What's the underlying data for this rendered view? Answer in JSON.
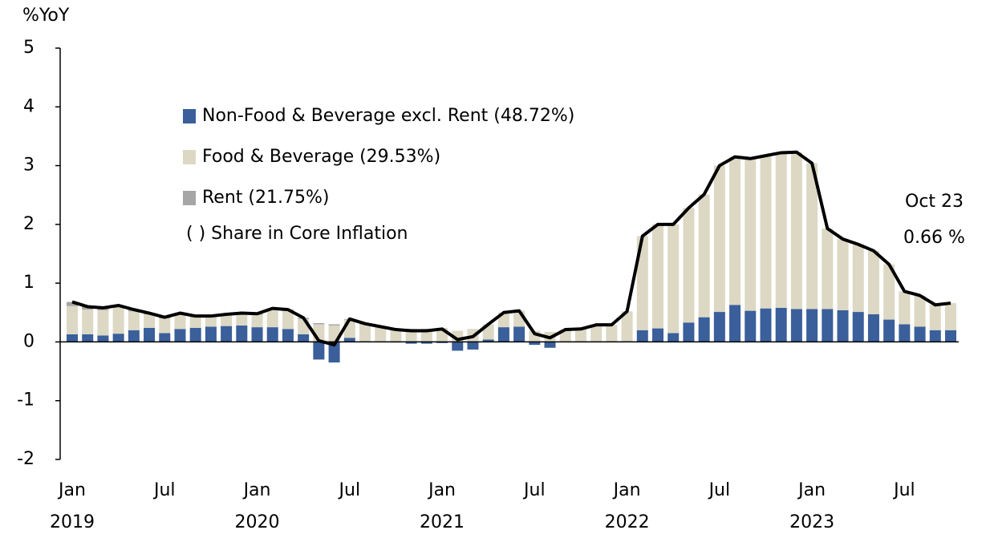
{
  "chart_data": {
    "type": "bar",
    "y_label": "%YoY",
    "categories": [
      "Jan 2019",
      null,
      null,
      null,
      null,
      null,
      "Jul",
      null,
      null,
      null,
      null,
      null,
      "Jan 2020",
      null,
      null,
      null,
      null,
      null,
      "Jul",
      null,
      null,
      null,
      null,
      null,
      "Jan 2021",
      null,
      null,
      null,
      null,
      null,
      "Jul",
      null,
      null,
      null,
      null,
      null,
      "Jan 2022",
      null,
      null,
      null,
      null,
      null,
      "Jul",
      null,
      null,
      null,
      null,
      null,
      "Jan 2023",
      null,
      null,
      null,
      null,
      null,
      "Jul",
      null,
      null,
      null
    ],
    "series": [
      {
        "name": "Non-Food & Beverage excl. Rent (48.72%)",
        "color": "#3a5f9a",
        "values": [
          0.13,
          0.13,
          0.11,
          0.14,
          0.2,
          0.24,
          0.15,
          0.22,
          0.24,
          0.26,
          0.27,
          0.28,
          0.25,
          0.25,
          0.22,
          0.13,
          -0.3,
          -0.35,
          0.07,
          0.01,
          0,
          -0.01,
          -0.03,
          -0.03,
          -0.02,
          -0.15,
          -0.13,
          0.04,
          0.25,
          0.26,
          -0.05,
          -0.1,
          0,
          0,
          0,
          0.01,
          0.01,
          0.2,
          0.23,
          0.15,
          0.33,
          0.42,
          0.51,
          0.63,
          0.53,
          0.57,
          0.58,
          0.56,
          0.56,
          0.56,
          0.54,
          0.51,
          0.47,
          0.38,
          0.3,
          0.26,
          0.2,
          0.2
        ]
      },
      {
        "name": "Food & Beverage (29.53%)",
        "color": "#dcd8c4",
        "values": [
          0.48,
          0.42,
          0.43,
          0.45,
          0.32,
          0.23,
          0.25,
          0.25,
          0.18,
          0.16,
          0.18,
          0.19,
          0.21,
          0.3,
          0.31,
          0.26,
          0.3,
          0.28,
          0.31,
          0.29,
          0.25,
          0.21,
          0.21,
          0.21,
          0.24,
          0.19,
          0.22,
          0.26,
          0.25,
          0.27,
          0.19,
          0.17,
          0.21,
          0.22,
          0.29,
          0.28,
          0.51,
          1.6,
          1.77,
          1.85,
          1.95,
          2.09,
          2.49,
          2.52,
          2.59,
          2.6,
          2.64,
          2.67,
          2.48,
          1.37,
          1.21,
          1.15,
          1.08,
          0.94,
          0.56,
          0.53,
          0.43,
          0.46
        ]
      },
      {
        "name": "Rent (21.75%)",
        "color": "#a6a6a6",
        "values": [
          0.07,
          0.05,
          0.04,
          0.03,
          0.03,
          0.02,
          0.02,
          0.02,
          0.02,
          0.02,
          0.02,
          0.02,
          0.02,
          0.02,
          0.02,
          0.02,
          0.02,
          0.02,
          0.01,
          0.01,
          0.01,
          0.01,
          0.01,
          0.01,
          0,
          0,
          0,
          0,
          0,
          0,
          0,
          0,
          0,
          0,
          0,
          0,
          0,
          0,
          0,
          0,
          0,
          0,
          0,
          0,
          0,
          0,
          0,
          0,
          0,
          0,
          0,
          0,
          0,
          0,
          0,
          0,
          0,
          0
        ]
      }
    ],
    "total": {
      "color": "#000000",
      "values": [
        0.68,
        0.6,
        0.58,
        0.62,
        0.55,
        0.49,
        0.42,
        0.49,
        0.44,
        0.44,
        0.47,
        0.49,
        0.48,
        0.57,
        0.55,
        0.41,
        0.02,
        -0.05,
        0.39,
        0.31,
        0.26,
        0.21,
        0.19,
        0.19,
        0.22,
        0.04,
        0.09,
        0.3,
        0.5,
        0.53,
        0.14,
        0.07,
        0.21,
        0.22,
        0.29,
        0.29,
        0.52,
        1.8,
        2.0,
        2.0,
        2.28,
        2.51,
        3.0,
        3.15,
        3.12,
        3.17,
        3.22,
        3.23,
        3.04,
        1.93,
        1.75,
        1.66,
        1.55,
        1.32,
        0.86,
        0.79,
        0.63,
        0.66
      ]
    },
    "legend_note": "( ) Share in Core Inflation",
    "annotation": {
      "date": "Oct 23",
      "value": 0.66,
      "value_label": "0.66 %"
    },
    "ylim": [
      -2,
      5
    ],
    "yticks": [
      -2,
      -1,
      0,
      1,
      2,
      3,
      4,
      5
    ]
  }
}
